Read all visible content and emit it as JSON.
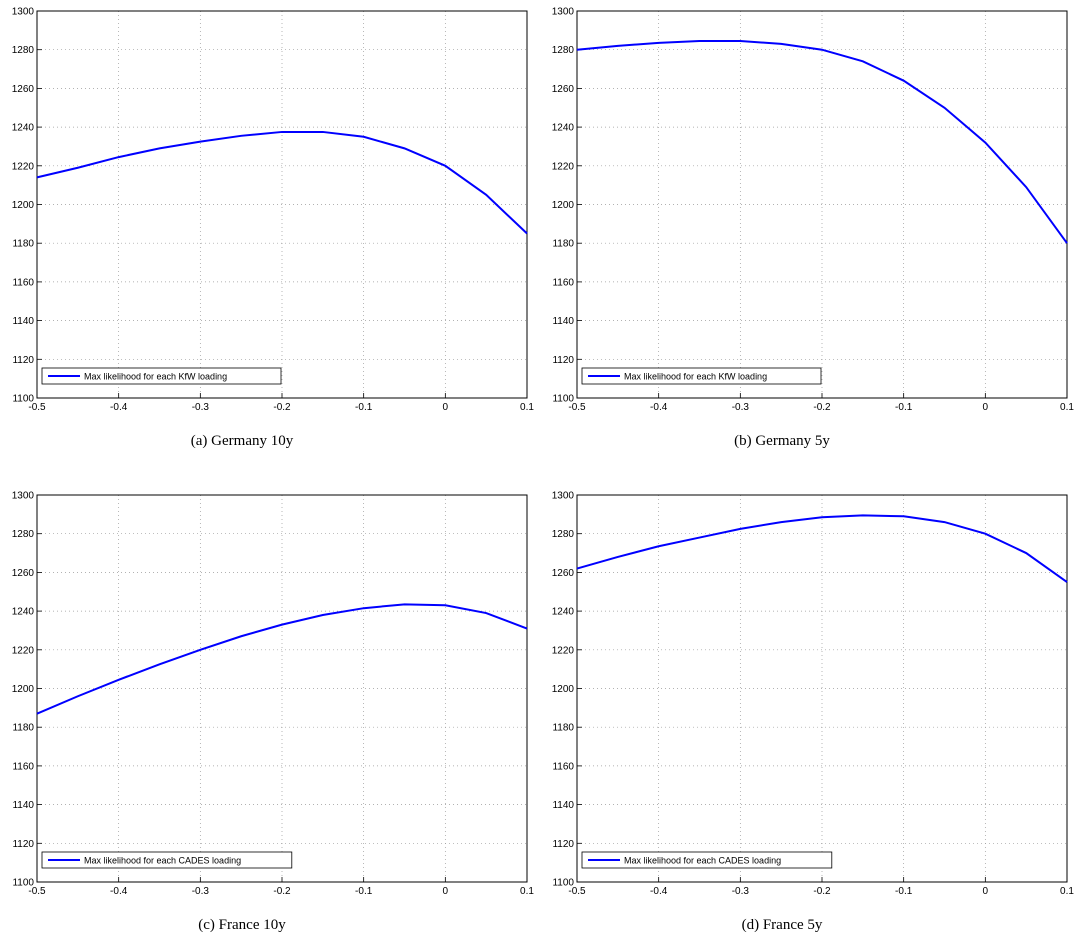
{
  "chart_data": [
    {
      "type": "line",
      "caption": "(a)  Germany 10y",
      "x": [
        -0.5,
        -0.45,
        -0.4,
        -0.35,
        -0.3,
        -0.25,
        -0.2,
        -0.15,
        -0.1,
        -0.05,
        0,
        0.05,
        0.1
      ],
      "series": [
        {
          "name": "Max likelihood for each KfW loading",
          "color": "#0000ff",
          "values": [
            1214,
            1219,
            1224.5,
            1229,
            1232.5,
            1235.5,
            1237.5,
            1237.5,
            1235,
            1229,
            1220,
            1205,
            1185
          ]
        }
      ],
      "xlim": [
        -0.5,
        0.1
      ],
      "xticks": [
        -0.5,
        -0.4,
        -0.3,
        -0.2,
        -0.1,
        0,
        0.1
      ],
      "ylim": [
        1100,
        1300
      ],
      "yticks": [
        1100,
        1120,
        1140,
        1160,
        1180,
        1200,
        1220,
        1240,
        1260,
        1280,
        1300
      ],
      "grid": true,
      "legend": "lower left"
    },
    {
      "type": "line",
      "caption": "(b)  Germany 5y",
      "x": [
        -0.5,
        -0.45,
        -0.4,
        -0.35,
        -0.3,
        -0.25,
        -0.2,
        -0.15,
        -0.1,
        -0.05,
        0,
        0.05,
        0.1
      ],
      "series": [
        {
          "name": "Max likelihood for each KfW loading",
          "color": "#0000ff",
          "values": [
            1280,
            1282,
            1283.5,
            1284.5,
            1284.5,
            1283,
            1280,
            1274,
            1264,
            1250,
            1232,
            1209,
            1180
          ]
        }
      ],
      "xlim": [
        -0.5,
        0.1
      ],
      "xticks": [
        -0.5,
        -0.4,
        -0.3,
        -0.2,
        -0.1,
        0,
        0.1
      ],
      "ylim": [
        1100,
        1300
      ],
      "yticks": [
        1100,
        1120,
        1140,
        1160,
        1180,
        1200,
        1220,
        1240,
        1260,
        1280,
        1300
      ],
      "grid": true,
      "legend": "lower left"
    },
    {
      "type": "line",
      "caption": "(c)  France 10y",
      "x": [
        -0.5,
        -0.45,
        -0.4,
        -0.35,
        -0.3,
        -0.25,
        -0.2,
        -0.15,
        -0.1,
        -0.05,
        0,
        0.05,
        0.1
      ],
      "series": [
        {
          "name": "Max likelihood for each CADES loading",
          "color": "#0000ff",
          "values": [
            1187,
            1196,
            1204.5,
            1212.5,
            1220,
            1227,
            1233,
            1238,
            1241.5,
            1243.5,
            1243,
            1239,
            1231
          ]
        }
      ],
      "xlim": [
        -0.5,
        0.1
      ],
      "xticks": [
        -0.5,
        -0.4,
        -0.3,
        -0.2,
        -0.1,
        0,
        0.1
      ],
      "ylim": [
        1100,
        1300
      ],
      "yticks": [
        1100,
        1120,
        1140,
        1160,
        1180,
        1200,
        1220,
        1240,
        1260,
        1280,
        1300
      ],
      "grid": true,
      "legend": "lower left"
    },
    {
      "type": "line",
      "caption": "(d)  France 5y",
      "x": [
        -0.5,
        -0.45,
        -0.4,
        -0.35,
        -0.3,
        -0.25,
        -0.2,
        -0.15,
        -0.1,
        -0.05,
        0,
        0.05,
        0.1
      ],
      "series": [
        {
          "name": "Max likelihood for each CADES loading",
          "color": "#0000ff",
          "values": [
            1262,
            1268,
            1273.5,
            1278,
            1282.5,
            1286,
            1288.5,
            1289.5,
            1289,
            1286,
            1280,
            1270,
            1255
          ]
        }
      ],
      "xlim": [
        -0.5,
        0.1
      ],
      "xticks": [
        -0.5,
        -0.4,
        -0.3,
        -0.2,
        -0.1,
        0,
        0.1
      ],
      "ylim": [
        1100,
        1300
      ],
      "yticks": [
        1100,
        1120,
        1140,
        1160,
        1180,
        1200,
        1220,
        1240,
        1260,
        1280,
        1300
      ],
      "grid": true,
      "legend": "lower left"
    }
  ]
}
